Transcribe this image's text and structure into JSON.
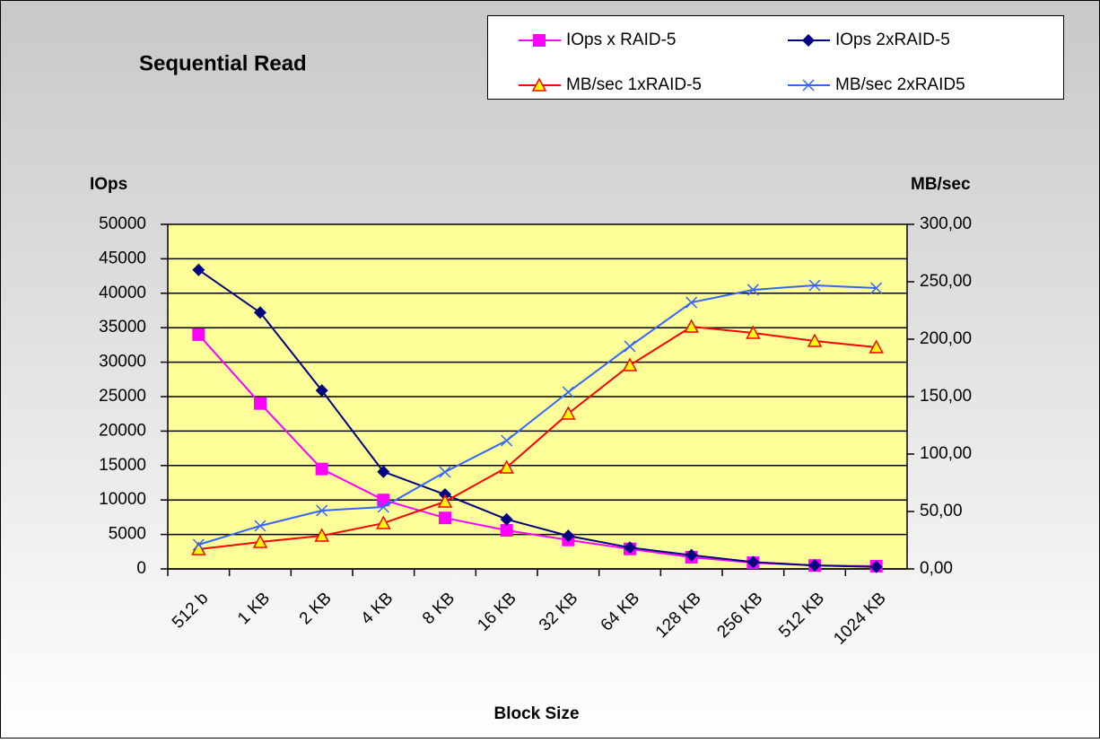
{
  "chart_data": {
    "type": "line",
    "title": "Sequential Read",
    "ylabel": "IOps",
    "y2label": "MB/sec",
    "xlabel": "Block Size",
    "categories": [
      "512 b",
      "1 KB",
      "2 KB",
      "4 KB",
      "8 KB",
      "16 KB",
      "32 KB",
      "64 KB",
      "128 KB",
      "256 KB",
      "512 KB",
      "1024 KB"
    ],
    "ylim": [
      0,
      50000
    ],
    "yticks": [
      0,
      5000,
      10000,
      15000,
      20000,
      25000,
      30000,
      35000,
      40000,
      45000,
      50000
    ],
    "y2lim": [
      0,
      300
    ],
    "y2ticks": [
      {
        "value": 0,
        "label": "0,00"
      },
      {
        "value": 50,
        "label": "50,00"
      },
      {
        "value": 100,
        "label": "100,00"
      },
      {
        "value": 150,
        "label": "150,00"
      },
      {
        "value": 200,
        "label": "200,00"
      },
      {
        "value": 250,
        "label": "250,00"
      },
      {
        "value": 300,
        "label": "300,00"
      }
    ],
    "grid": true,
    "series": [
      {
        "name": "IOps x RAID-5",
        "color": "#ff00ff",
        "marker": "square",
        "values": [
          34000,
          24000,
          14500,
          10000,
          7400,
          5600,
          4200,
          2900,
          1700,
          900,
          500,
          400
        ]
      },
      {
        "name": "IOps 2xRAID-5",
        "color": "#000080",
        "marker": "diamond",
        "values": [
          43400,
          37200,
          25900,
          14100,
          10800,
          7200,
          4800,
          3100,
          2000,
          1000,
          500,
          300
        ]
      },
      {
        "name": "MB/sec 1xRAID-5",
        "color": "#ff0000",
        "marker": "triangle",
        "axis": "y2",
        "values": [
          17.2,
          23.4,
          28.9,
          39.8,
          58.6,
          88.3,
          135.2,
          177.3,
          210.9,
          205.5,
          198.4,
          193
        ]
      },
      {
        "name": "MB/sec 2xRAID5",
        "color": "#3366ff",
        "marker": "x",
        "axis": "y2",
        "values": [
          21.1,
          37.5,
          50.8,
          53.9,
          84.4,
          111.7,
          153.9,
          193.8,
          232,
          243,
          246.9,
          244.5
        ]
      }
    ]
  }
}
